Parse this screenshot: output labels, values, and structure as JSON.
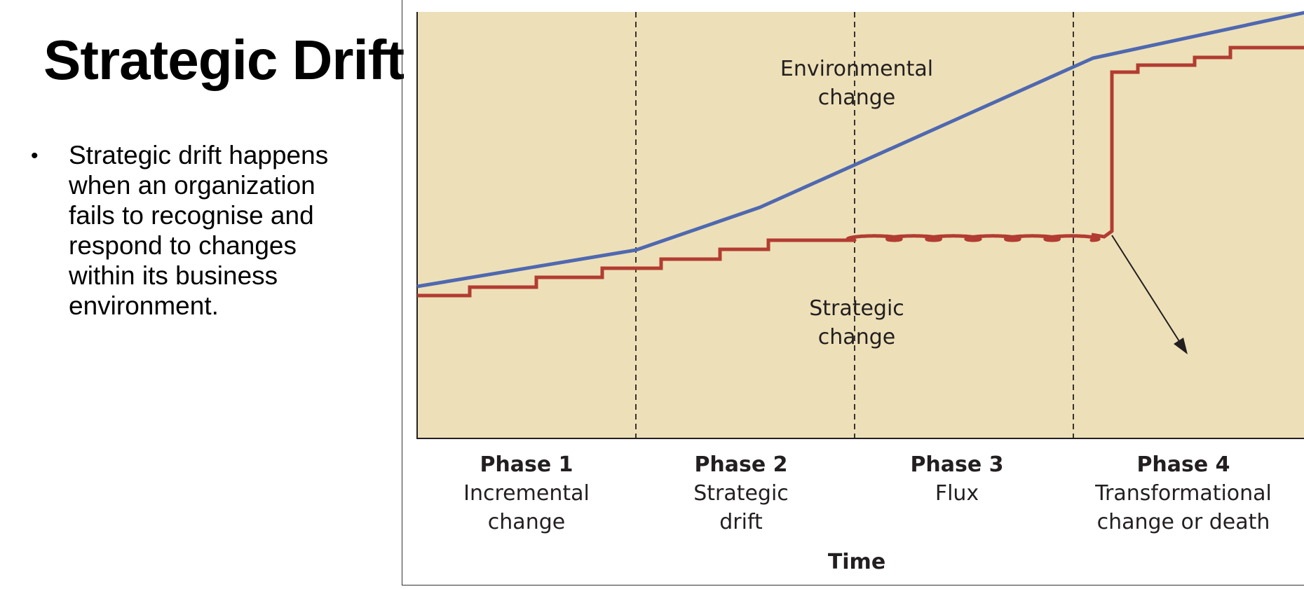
{
  "slide": {
    "title": "Strategic Drift",
    "bullets": [
      {
        "marker": "•",
        "lines": [
          "Strategic drift happens",
          "when an organization",
          "fails to recognise and",
          "respond to changes",
          "within its business",
          "environment."
        ]
      }
    ]
  },
  "diagram": {
    "environmental_label": [
      "Environmental",
      "change"
    ],
    "strategic_label": [
      "Strategic",
      "change"
    ],
    "phases": [
      {
        "title": "Phase 1",
        "lines": [
          "Incremental",
          "change"
        ]
      },
      {
        "title": "Phase 2",
        "lines": [
          "Strategic",
          "drift"
        ]
      },
      {
        "title": "Phase 3",
        "lines": [
          "Flux"
        ]
      },
      {
        "title": "Phase 4",
        "lines": [
          "Transformational",
          "change or death"
        ]
      }
    ],
    "x_axis_label": "Time",
    "colors": {
      "background": "#ede0b8",
      "environmental_line": "#4f68b0",
      "strategic_line": "#b23c32",
      "axis": "#231f20"
    }
  }
}
